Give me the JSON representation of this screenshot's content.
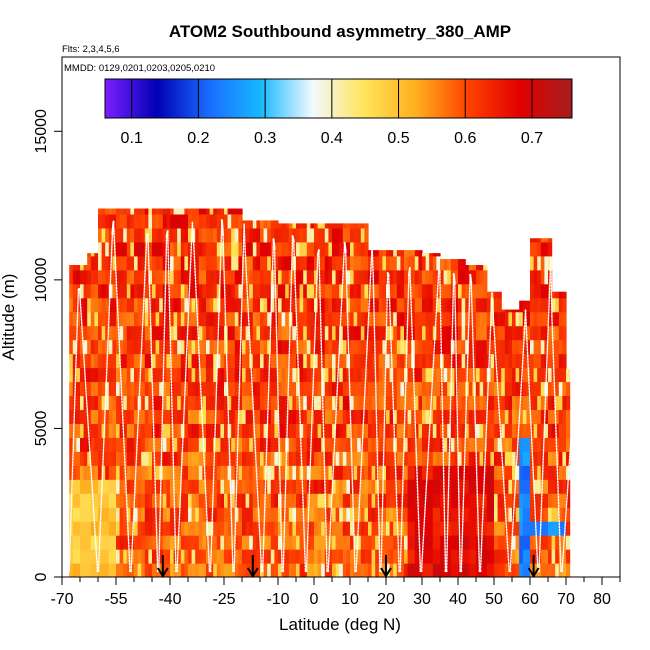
{
  "chart_data": {
    "type": "heatmap",
    "title": "ATOM2 Southbound asymmetry_380_AMP",
    "flights_note": "Flts: 2,3,4,5,6",
    "dates_note": "MMDD: 0129,0201,0203,0205,0210",
    "xlabel": "Latitude (deg N)",
    "ylabel": "Altitude (m)",
    "xlim": [
      -70,
      85
    ],
    "ylim": [
      0,
      17500
    ],
    "x_ticks": [
      -70,
      -55,
      -40,
      -25,
      -10,
      0,
      10,
      20,
      30,
      40,
      50,
      60,
      70,
      80
    ],
    "x_tick_labels": [
      "-70",
      "-55",
      "-40",
      "-25",
      "-10",
      "0",
      "10",
      "20",
      "30",
      "40",
      "50",
      "60",
      "70",
      "80"
    ],
    "x_minor_ticks": [
      -65,
      -60,
      -50,
      -45,
      -35,
      -30,
      -20,
      -15,
      -5,
      5,
      15,
      25,
      35,
      45,
      55,
      65,
      75,
      85
    ],
    "y_ticks": [
      0,
      5000,
      10000,
      15000
    ],
    "y_tick_labels": [
      "0",
      "5000",
      "10000",
      "15000"
    ],
    "colorbar": {
      "range": [
        0.06,
        0.76
      ],
      "ticks": [
        0.1,
        0.2,
        0.3,
        0.4,
        0.5,
        0.6,
        0.7
      ],
      "tick_labels": [
        "0.1",
        "0.2",
        "0.3",
        "0.4",
        "0.5",
        "0.6",
        "0.7"
      ],
      "stops": [
        "#7c1fff",
        "#0000b4",
        "#1a6bff",
        "#18b8ff",
        "#f2faff",
        "#ffe45a",
        "#ffae1e",
        "#ff4200",
        "#e00000",
        "#a51e1e"
      ]
    },
    "arrows_lat": [
      -42,
      -17,
      20,
      61
    ],
    "extent": {
      "lat_min": -68,
      "lat_max": 71,
      "alt_max": 12400
    },
    "data_note": "Values estimated from image: mostly 0.5-0.7 (yellow-orange-red); low values near 0.3-0.4 at scattered locations and a 0.2-0.3 column near 58 N below 4.5 km",
    "series": [
      {
        "name": "flight-tracks",
        "type": "line",
        "color": "#ffffff"
      }
    ]
  }
}
